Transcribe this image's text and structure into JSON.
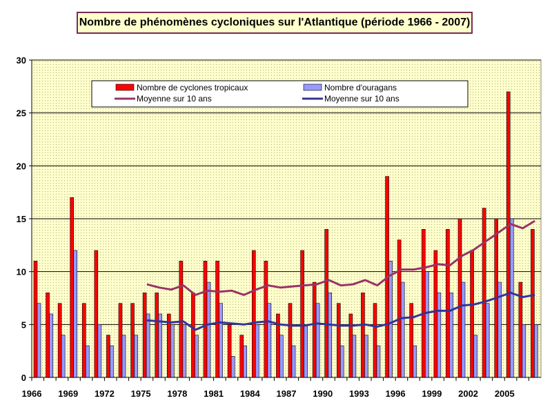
{
  "chart_data": {
    "type": "bar",
    "title": "Nombre de phénomènes cycloniques sur l'Atlantique (période 1966 - 2007)",
    "xlabel": "",
    "ylabel": "",
    "ylim": [
      0,
      30
    ],
    "yticks": [
      0,
      5,
      10,
      15,
      20,
      25,
      30
    ],
    "grid": true,
    "legend_position": "top",
    "categories": [
      1966,
      1967,
      1968,
      1969,
      1970,
      1971,
      1972,
      1973,
      1974,
      1975,
      1976,
      1977,
      1978,
      1979,
      1980,
      1981,
      1982,
      1983,
      1984,
      1985,
      1986,
      1987,
      1988,
      1989,
      1990,
      1991,
      1992,
      1993,
      1994,
      1995,
      1996,
      1997,
      1998,
      1999,
      2000,
      2001,
      2002,
      2003,
      2004,
      2005,
      2006,
      2007
    ],
    "xtick_labels": [
      "1966",
      "1969",
      "1972",
      "1975",
      "1978",
      "1981",
      "1984",
      "1987",
      "1990",
      "1993",
      "1996",
      "1999",
      "2002",
      "2005"
    ],
    "series": [
      {
        "name": "Nombre de cyclones tropicaux",
        "kind": "bar",
        "color": "#ff0000",
        "values": [
          11,
          8,
          7,
          17,
          7,
          12,
          4,
          7,
          7,
          8,
          8,
          6,
          11,
          8,
          11,
          11,
          5,
          4,
          12,
          11,
          6,
          7,
          12,
          9,
          14,
          7,
          6,
          8,
          7,
          19,
          13,
          7,
          14,
          12,
          14,
          15,
          12,
          16,
          15,
          27,
          9,
          14
        ]
      },
      {
        "name": "Nombre d'ouragans",
        "kind": "bar",
        "color": "#9999ff",
        "values": [
          7,
          6,
          4,
          12,
          3,
          5,
          3,
          4,
          4,
          6,
          6,
          5,
          5,
          4,
          9,
          7,
          2,
          3,
          5,
          7,
          4,
          3,
          5,
          7,
          8,
          3,
          4,
          4,
          3,
          11,
          9,
          3,
          10,
          8,
          8,
          9,
          4,
          7,
          9,
          15,
          5,
          5
        ]
      },
      {
        "name": "Moyenne sur 10 ans",
        "kind": "line",
        "color": "#993366",
        "x": [
          1975,
          1976,
          1977,
          1978,
          1979,
          1980,
          1981,
          1982,
          1983,
          1984,
          1985,
          1986,
          1987,
          1988,
          1989,
          1990,
          1991,
          1992,
          1993,
          1994,
          1995,
          1996,
          1997,
          1998,
          1999,
          2000,
          2001,
          2002,
          2003,
          2004,
          2005,
          2006,
          2007
        ],
        "values": [
          8.8,
          8.5,
          8.3,
          8.7,
          7.8,
          8.2,
          8.1,
          8.2,
          7.8,
          8.3,
          8.7,
          8.5,
          8.6,
          8.7,
          8.8,
          9.2,
          8.7,
          8.8,
          9.2,
          8.7,
          9.6,
          10.2,
          10.2,
          10.4,
          10.7,
          10.6,
          11.5,
          12.1,
          12.9,
          13.7,
          14.5,
          14.1,
          14.8
        ]
      },
      {
        "name": "Moyenne sur 10 ans",
        "kind": "line",
        "color": "#333399",
        "x": [
          1975,
          1976,
          1977,
          1978,
          1979,
          1980,
          1981,
          1982,
          1983,
          1984,
          1985,
          1986,
          1987,
          1988,
          1989,
          1990,
          1991,
          1992,
          1993,
          1994,
          1995,
          1996,
          1997,
          1998,
          1999,
          2000,
          2001,
          2002,
          2003,
          2004,
          2005,
          2006,
          2007
        ],
        "values": [
          5.4,
          5.3,
          5.2,
          5.3,
          4.5,
          5.0,
          5.2,
          5.1,
          5.0,
          5.2,
          5.3,
          5.0,
          4.9,
          4.9,
          5.1,
          5.0,
          4.9,
          4.9,
          5.0,
          4.8,
          5.1,
          5.6,
          5.7,
          6.1,
          6.3,
          6.3,
          6.8,
          6.9,
          7.2,
          7.6,
          8.0,
          7.6,
          7.8
        ]
      }
    ],
    "legend": [
      {
        "label": "Nombre de cyclones tropicaux",
        "kind": "bar",
        "color": "#ff0000"
      },
      {
        "label": "Nombre d'ouragans",
        "kind": "bar",
        "color": "#9999ff"
      },
      {
        "label": "Moyenne sur 10 ans",
        "kind": "line",
        "color": "#993366"
      },
      {
        "label": "Moyenne sur 10 ans",
        "kind": "line",
        "color": "#333399"
      }
    ],
    "plot_background": "#ffffcc"
  }
}
